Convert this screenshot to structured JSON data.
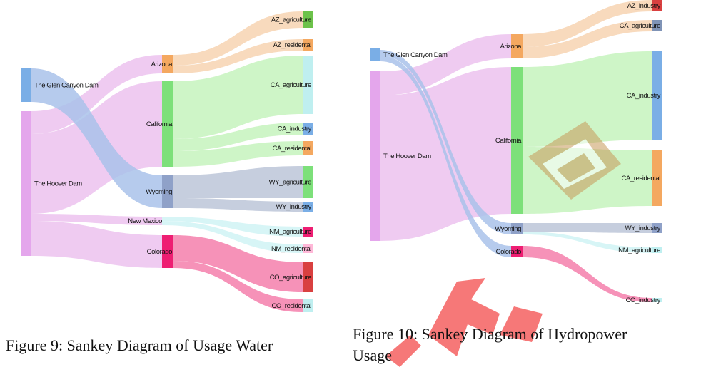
{
  "figures": [
    {
      "id": "water",
      "caption": "Figure 9: Sankey Diagram of Usage Water",
      "nodes": [
        {
          "id": "glen",
          "label": "The Glen Canyon Dam",
          "color": "#7aaee6"
        },
        {
          "id": "hoover",
          "label": "The Hoover Dam",
          "color": "#e4a6ec"
        },
        {
          "id": "az",
          "label": "Arizona",
          "color": "#f4a860"
        },
        {
          "id": "ca",
          "label": "California",
          "color": "#7de07a"
        },
        {
          "id": "wy",
          "label": "Wyoming",
          "color": "#8fa1c8"
        },
        {
          "id": "nm",
          "label": "New Mexico",
          "color": "#bfeff0"
        },
        {
          "id": "co",
          "label": "Colorado",
          "color": "#ee1e72"
        },
        {
          "id": "az_ag",
          "label": "AZ_agriculture",
          "color": "#6cc24a"
        },
        {
          "id": "az_res",
          "label": "AZ_residental",
          "color": "#f4a860"
        },
        {
          "id": "ca_ag",
          "label": "CA_agriculture",
          "color": "#bfeff0"
        },
        {
          "id": "ca_ind",
          "label": "CA_industry",
          "color": "#7aaee6"
        },
        {
          "id": "ca_res",
          "label": "CA_residental",
          "color": "#f4a860"
        },
        {
          "id": "wy_ag",
          "label": "WY_agriculture",
          "color": "#7de07a"
        },
        {
          "id": "wy_ind",
          "label": "WY_industry",
          "color": "#7aaee6"
        },
        {
          "id": "nm_ag",
          "label": "NM_agriculture",
          "color": "#ee1e72"
        },
        {
          "id": "nm_res",
          "label": "NM_residental",
          "color": "#ffb8d8"
        },
        {
          "id": "co_ag",
          "label": "CO_agriculture",
          "color": "#d94040"
        },
        {
          "id": "co_res",
          "label": "CO_residental",
          "color": "#bfeff0"
        }
      ],
      "links": [
        {
          "source": "hoover",
          "target": "az",
          "color": "#ecc2ee"
        },
        {
          "source": "hoover",
          "target": "ca",
          "color": "#ecc2ee"
        },
        {
          "source": "glen",
          "target": "wy",
          "color": "#a9c2ea"
        },
        {
          "source": "hoover",
          "target": "nm",
          "color": "#ecc2ee"
        },
        {
          "source": "hoover",
          "target": "co",
          "color": "#ecc2ee"
        },
        {
          "source": "az",
          "target": "az_ag",
          "color": "#f7d3b2"
        },
        {
          "source": "az",
          "target": "az_res",
          "color": "#f7d3b2"
        },
        {
          "source": "ca",
          "target": "ca_ag",
          "color": "#c5f3bd"
        },
        {
          "source": "ca",
          "target": "ca_ind",
          "color": "#c5f3bd"
        },
        {
          "source": "ca",
          "target": "ca_res",
          "color": "#c5f3bd"
        },
        {
          "source": "wy",
          "target": "wy_ag",
          "color": "#bcc6d8"
        },
        {
          "source": "wy",
          "target": "wy_ind",
          "color": "#bcc6d8"
        },
        {
          "source": "nm",
          "target": "nm_ag",
          "color": "#d0f3f4"
        },
        {
          "source": "nm",
          "target": "nm_res",
          "color": "#d0f3f4"
        },
        {
          "source": "co",
          "target": "co_ag",
          "color": "#f57fab"
        },
        {
          "source": "co",
          "target": "co_res",
          "color": "#f57fab"
        }
      ]
    },
    {
      "id": "hydropower",
      "caption": "Figure 10: Sankey Diagram of Hydropower",
      "caption_line2": "Usage",
      "nodes": [
        {
          "id": "glen",
          "label": "The Glen Canyon Dam",
          "color": "#7aaee6"
        },
        {
          "id": "hoover",
          "label": "The Hoover Dam",
          "color": "#e4a6ec"
        },
        {
          "id": "az",
          "label": "Arizona",
          "color": "#f4a860"
        },
        {
          "id": "ca",
          "label": "California",
          "color": "#7de07a"
        },
        {
          "id": "wy",
          "label": "Wyoming",
          "color": "#8fa1c8"
        },
        {
          "id": "co",
          "label": "Colorado",
          "color": "#ee1e72"
        },
        {
          "id": "az_ind",
          "label": "AZ_industry",
          "color": "#d94040"
        },
        {
          "id": "ca_ag",
          "label": "CA_agriculture",
          "color": "#7f93b6"
        },
        {
          "id": "ca_ind",
          "label": "CA_industry",
          "color": "#7aaee6"
        },
        {
          "id": "ca_res",
          "label": "CA_residental",
          "color": "#f4a860"
        },
        {
          "id": "wy_ind",
          "label": "WY_industry",
          "color": "#8fa1c8"
        },
        {
          "id": "nm_ag",
          "label": "NM_agriculture",
          "color": "#bfeff0"
        },
        {
          "id": "co_ind",
          "label": "CO_industry",
          "color": "#bfeff0"
        }
      ],
      "links": [
        {
          "source": "hoover",
          "target": "az",
          "color": "#ecc2ee"
        },
        {
          "source": "hoover",
          "target": "ca",
          "color": "#ecc2ee"
        },
        {
          "source": "glen",
          "target": "wy",
          "color": "#a9c2ea"
        },
        {
          "source": "glen",
          "target": "co",
          "color": "#a9c2ea"
        },
        {
          "source": "az",
          "target": "az_ind",
          "color": "#f7d3b2"
        },
        {
          "source": "az",
          "target": "ca_ag",
          "color": "#f7d3b2"
        },
        {
          "source": "ca",
          "target": "ca_ind",
          "color": "#c5f3bd"
        },
        {
          "source": "ca",
          "target": "ca_res",
          "color": "#c5f3bd"
        },
        {
          "source": "wy",
          "target": "wy_ind",
          "color": "#bcc6d8"
        },
        {
          "source": "wy",
          "target": "nm_ag",
          "color": "#d0f3f4"
        },
        {
          "source": "co",
          "target": "co_ind",
          "color": "#f57fab"
        }
      ]
    }
  ]
}
